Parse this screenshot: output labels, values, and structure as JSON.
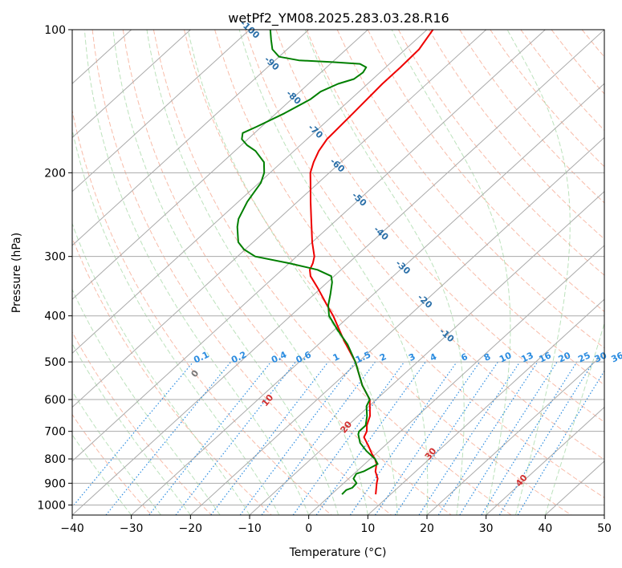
{
  "chart_data": {
    "type": "line",
    "subtype": "skew-T log-p diagram",
    "title": "wetPf2_YM08.2025.283.03.28.R16",
    "xlabel": "Temperature (°C)",
    "ylabel": "Pressure (hPa)",
    "xlim": [
      -40,
      50
    ],
    "ylim": [
      1050,
      100
    ],
    "x_ticks": [
      "−40",
      "−30",
      "−20",
      "−10",
      "0",
      "10",
      "20",
      "30",
      "40",
      "50"
    ],
    "x_tick_values": [
      -40,
      -30,
      -20,
      -10,
      0,
      10,
      20,
      30,
      40,
      50
    ],
    "y_ticks": [
      "100",
      "200",
      "300",
      "400",
      "500",
      "600",
      "700",
      "800",
      "900",
      "1000"
    ],
    "y_tick_values": [
      100,
      200,
      300,
      400,
      500,
      600,
      700,
      800,
      900,
      1000
    ],
    "isotherm_labels": {
      "values": [
        "-100",
        "-90",
        "-80",
        "-70",
        "-60",
        "-50",
        "-40",
        "-30",
        "-20",
        "-10"
      ],
      "temps": [
        -100,
        -90,
        -80,
        -70,
        -60,
        -50,
        -40,
        -30,
        -20,
        -10
      ],
      "color": "#2a6fa8"
    },
    "dry_adiabat_labels": {
      "values": [
        "0",
        "10",
        "20",
        "30",
        "40"
      ],
      "theta_c": [
        0,
        10,
        20,
        30,
        40
      ],
      "colors": [
        "#777777",
        "#d23030",
        "#d23030",
        "#d23030",
        "#d23030"
      ]
    },
    "mixing_ratio_labels": {
      "values": [
        "0.1",
        "0.2",
        "0.4",
        "0.6",
        "1",
        "1.5",
        "2",
        "3",
        "4",
        "6",
        "8",
        "10",
        "13",
        "16",
        "20",
        "25",
        "30",
        "36"
      ],
      "g_per_kg": [
        0.1,
        0.2,
        0.4,
        0.6,
        1,
        1.5,
        2,
        3,
        4,
        6,
        8,
        10,
        13,
        16,
        20,
        25,
        30,
        36
      ],
      "color": "#2b8ce0"
    },
    "series": [
      {
        "name": "Temperature",
        "color": "#ee0000",
        "points": [
          [
            950,
            7.5
          ],
          [
            900,
            5.6
          ],
          [
            880,
            4.9
          ],
          [
            850,
            3.2
          ],
          [
            820,
            2.0
          ],
          [
            800,
            0.8
          ],
          [
            780,
            -0.7
          ],
          [
            750,
            -2.8
          ],
          [
            720,
            -5.1
          ],
          [
            700,
            -5.7
          ],
          [
            680,
            -6.8
          ],
          [
            650,
            -8.0
          ],
          [
            600,
            -11.1
          ],
          [
            560,
            -15.0
          ],
          [
            500,
            -20.5
          ],
          [
            450,
            -26.5
          ],
          [
            420,
            -30.2
          ],
          [
            400,
            -32.8
          ],
          [
            380,
            -35.8
          ],
          [
            350,
            -40.5
          ],
          [
            330,
            -44.0
          ],
          [
            320,
            -45.3
          ],
          [
            310,
            -46.0
          ],
          [
            300,
            -47.0
          ],
          [
            280,
            -50.0
          ],
          [
            250,
            -54.5
          ],
          [
            230,
            -57.8
          ],
          [
            210,
            -61.3
          ],
          [
            200,
            -63.2
          ],
          [
            190,
            -64.6
          ],
          [
            180,
            -65.8
          ],
          [
            170,
            -66.6
          ],
          [
            150,
            -67.0
          ],
          [
            130,
            -67.5
          ],
          [
            120,
            -67.5
          ],
          [
            110,
            -67.7
          ],
          [
            100,
            -69.0
          ]
        ]
      },
      {
        "name": "Dewpoint",
        "color": "#007f00",
        "points": [
          [
            950,
            1.8
          ],
          [
            930,
            1.7
          ],
          [
            920,
            2.3
          ],
          [
            900,
            2.2
          ],
          [
            880,
            0.8
          ],
          [
            860,
            0.4
          ],
          [
            850,
            1.2
          ],
          [
            820,
            2.2
          ],
          [
            800,
            0.8
          ],
          [
            770,
            -2.1
          ],
          [
            740,
            -4.7
          ],
          [
            710,
            -6.6
          ],
          [
            700,
            -7.0
          ],
          [
            680,
            -7.0
          ],
          [
            650,
            -8.5
          ],
          [
            620,
            -10.4
          ],
          [
            600,
            -11.1
          ],
          [
            560,
            -15.0
          ],
          [
            500,
            -20.5
          ],
          [
            460,
            -25.0
          ],
          [
            430,
            -29.2
          ],
          [
            400,
            -33.5
          ],
          [
            380,
            -35.6
          ],
          [
            360,
            -37.3
          ],
          [
            340,
            -39.2
          ],
          [
            330,
            -40.5
          ],
          [
            320,
            -44.0
          ],
          [
            310,
            -50.0
          ],
          [
            300,
            -57.0
          ],
          [
            290,
            -60.2
          ],
          [
            280,
            -62.5
          ],
          [
            260,
            -65.5
          ],
          [
            250,
            -66.8
          ],
          [
            230,
            -68.5
          ],
          [
            210,
            -69.7
          ],
          [
            200,
            -71.0
          ],
          [
            190,
            -73.0
          ],
          [
            180,
            -76.5
          ],
          [
            175,
            -79.0
          ],
          [
            170,
            -81.0
          ],
          [
            165,
            -82.0
          ],
          [
            160,
            -80.8
          ],
          [
            150,
            -78.6
          ],
          [
            140,
            -76.8
          ],
          [
            135,
            -76.5
          ],
          [
            130,
            -75.0
          ],
          [
            127,
            -73.2
          ],
          [
            123,
            -72.9
          ],
          [
            120,
            -73.3
          ],
          [
            118,
            -75.0
          ],
          [
            117,
            -80.0
          ],
          [
            116,
            -86.0
          ],
          [
            114,
            -90.0
          ],
          [
            110,
            -92.5
          ],
          [
            105,
            -94.5
          ],
          [
            100,
            -96.5
          ]
        ]
      }
    ]
  }
}
